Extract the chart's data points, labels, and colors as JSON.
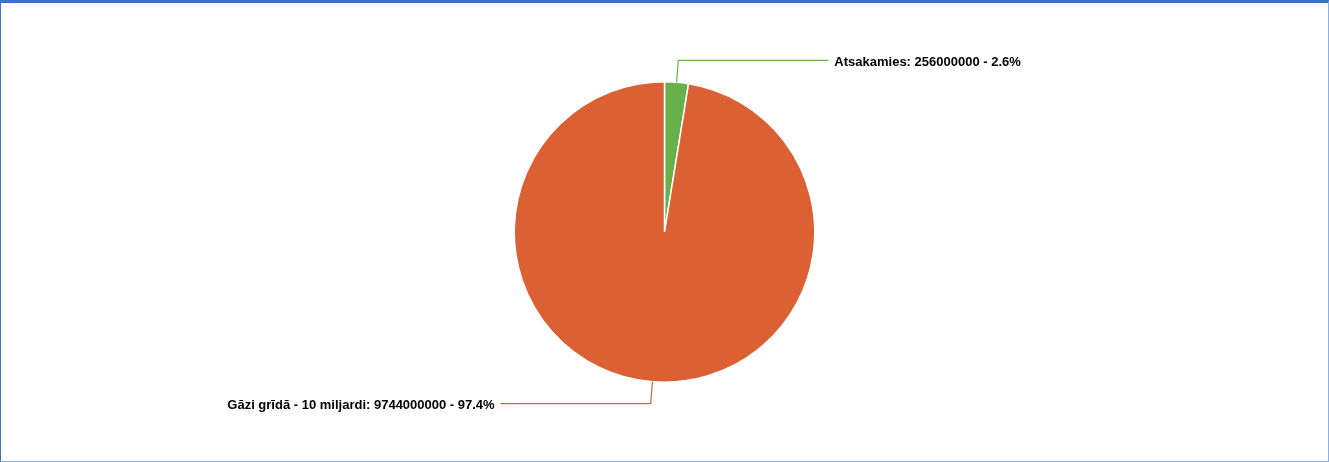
{
  "chart_data": {
    "type": "pie",
    "categories": [
      "Atsakamies",
      "Gāzi grīdā - 10 miljardi"
    ],
    "values": [
      256000000,
      9744000000
    ],
    "colors": [
      "#68b04a",
      "#db6033"
    ],
    "value_labels": [
      "256000000 - 2.6%",
      "9744000000 - 97.4%"
    ],
    "legend": false
  }
}
